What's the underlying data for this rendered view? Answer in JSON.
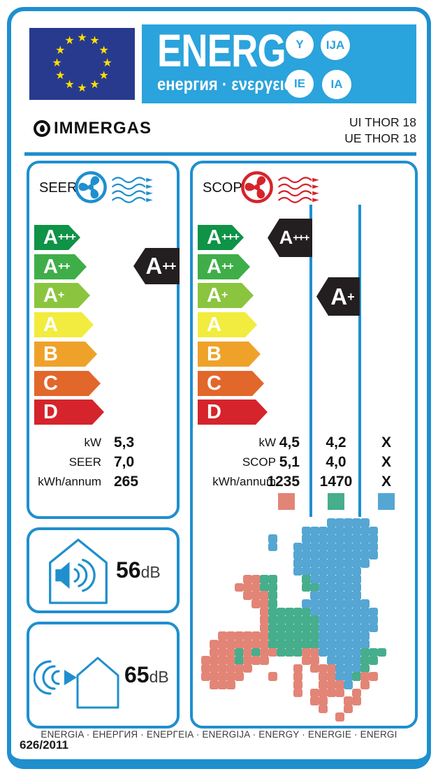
{
  "colors": {
    "line_blue": "#1F8FCE",
    "banner_blue": "#2BA3DC",
    "eu_flag_blue": "#283A8E",
    "star_yellow": "#FFDE00",
    "indicator_black": "#231F20"
  },
  "header": {
    "word": "ENERG",
    "subtitle": "енергия · ενεργεια",
    "circles": [
      "Y",
      "IJA",
      "IE",
      "IA"
    ],
    "flag_stars": 12
  },
  "brand": {
    "name": "IMMERGAS",
    "model_indoor": "UI THOR 18",
    "model_outdoor": "UE THOR 18"
  },
  "scale": {
    "grades": [
      {
        "label": "A+++",
        "color": "#0E9347"
      },
      {
        "label": "A++",
        "color": "#3FAE49"
      },
      {
        "label": "A+",
        "color": "#8BC53F"
      },
      {
        "label": "A",
        "color": "#F2EC3E"
      },
      {
        "label": "B",
        "color": "#EFA229"
      },
      {
        "label": "C",
        "color": "#E2672B"
      },
      {
        "label": "D",
        "color": "#D5242B"
      }
    ]
  },
  "seer": {
    "title": "SEER",
    "indicator": "A++",
    "values": [
      {
        "label": "kW",
        "value": "5,3"
      },
      {
        "label": "SEER",
        "value": "7,0"
      },
      {
        "label": "kWh/annum",
        "value": "265"
      }
    ]
  },
  "scop": {
    "title": "SCOP",
    "indicator_zone1": "A+++",
    "indicator_zone2": "A+",
    "labels": [
      "kW",
      "SCOP",
      "kWh/annum"
    ],
    "columns": [
      {
        "values": [
          "4,5",
          "5,1",
          "1235"
        ],
        "zone_color": "#E28577"
      },
      {
        "values": [
          "4,2",
          "4,0",
          "1470"
        ],
        "zone_color": "#46AE8C"
      },
      {
        "values": [
          "X",
          "X",
          "X"
        ],
        "zone_color": "#55A6D3"
      }
    ]
  },
  "noise": {
    "indoor_value": "56",
    "indoor_unit": "dB",
    "outdoor_value": "65",
    "outdoor_unit": "dB"
  },
  "footer": {
    "languages": "ENERGIA · ЕНЕРГИЯ · ΕΝΕΡΓΕΙΑ · ENERGIJA · ENERGY · ENERGIE · ENERGI",
    "regulation": "626/2011"
  },
  "map": {
    "palette": {
      "r": "#E28577",
      "g": "#46AE8C",
      "b": "#55A6D3"
    },
    "rows": [
      "...............bbbbb.....",
      "............bbbbbbbbb....",
      "........b...bbbbbbbbb....",
      "........b..bbbbbbbbbb....",
      "...........bbbbbbbbbb....",
      "...........bbbbbbbbb.....",
      "...........bbbbbbbb......",
      ".....rrgg...gbbbbbb......",
      "....rrrgg...ggbbbbb......",
      ".....rrrg....bbbbbb......",
      "......rrg...bbbbbbbb.....",
      ".......rgggggbbbbbbbb....",
      ".......rggggggbbbbbbb....",
      ".......rggggggbbbbbbb....",
      "..rrrrrrggggggbbbbbb.....",
      ".rrrrrrrggggggbbbbbb.....",
      ".rrrgrgrrgggrrbbbbbggg...",
      "rrrrgrrr....rr.bbbbgg....",
      "rrrrrr.....r.rrrbbbg.....",
      "rrrrr...r..r..rrbbgrr....",
      ".rrr.......r..rrrb.r.....",
      "...........r.rrrr.r......",
      ".............rr..rr......",
      "..............r..r.......",
      "................r........"
    ]
  }
}
